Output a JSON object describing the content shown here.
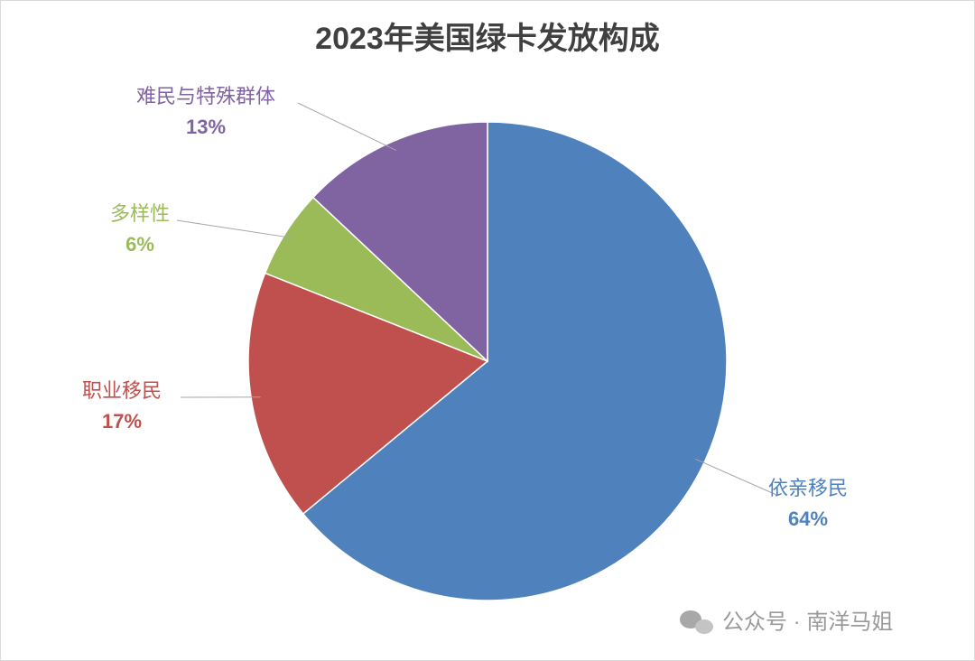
{
  "chart_data": {
    "type": "pie",
    "title": "2023年美国绿卡发放构成",
    "categories": [
      "依亲移民",
      "职业移民",
      "多样性",
      "难民与特殊群体"
    ],
    "values": [
      64,
      17,
      6,
      13
    ],
    "value_labels": [
      "64%",
      "17%",
      "6%",
      "13%"
    ],
    "colors": [
      "#4f81bd",
      "#c0504d",
      "#9bbb59",
      "#8064a2"
    ]
  },
  "watermark": "公众号 · 南洋马姐"
}
